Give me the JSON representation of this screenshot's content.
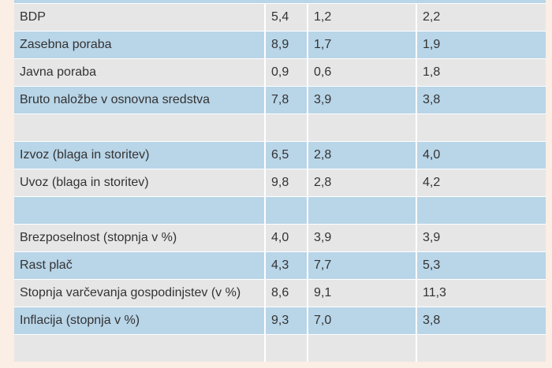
{
  "table": {
    "rows": [
      [
        "BDP",
        "5,4",
        "1,2",
        "2,2"
      ],
      [
        "Zasebna poraba",
        "8,9",
        "1,7",
        "1,9"
      ],
      [
        "Javna poraba",
        "0,9",
        "0,6",
        "1,8"
      ],
      [
        "Bruto naložbe v osnovna sredstva",
        "7,8",
        "3,9",
        "3,8"
      ],
      [],
      [
        "Izvoz (blaga in storitev)",
        "6,5",
        "2,8",
        "4,0"
      ],
      [
        "Uvoz (blaga in storitev)",
        "9,8",
        "2,8",
        "4,2"
      ],
      [],
      [
        "Brezposelnost (stopnja v %)",
        "4,0",
        "3,9",
        "3,9"
      ],
      [
        "Rast plač",
        "4,3",
        "7,7",
        "5,3"
      ],
      [
        "Stopnja varčevanja gospodinjstev (v %)",
        "8,6",
        "9,1",
        "11,3"
      ],
      [
        "Inflacija (stopnja v %)",
        "9,3",
        "7,0",
        "3,8"
      ],
      []
    ]
  }
}
